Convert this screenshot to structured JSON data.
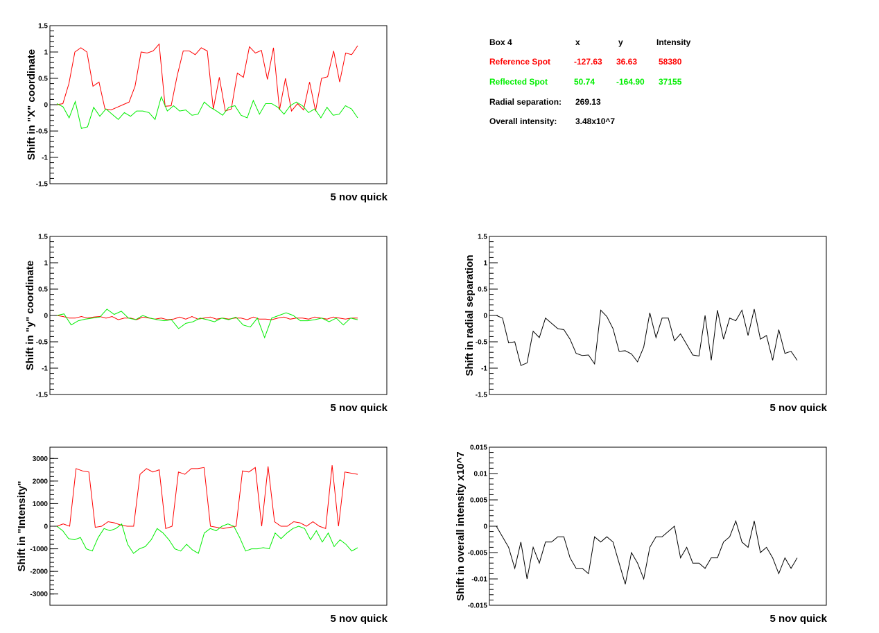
{
  "footer_label": "5 nov quick",
  "colors": {
    "reference": "#ff0000",
    "reflected": "#00ee00",
    "single": "#000000"
  },
  "info_panel": {
    "header": {
      "label": "Box 4",
      "x": "x",
      "y": "y",
      "intensity": "Intensity"
    },
    "reference": {
      "label": "Reference Spot",
      "x": "-127.63",
      "y": "36.63",
      "intensity": "58380"
    },
    "reflected": {
      "label": "Reflected Spot",
      "x": "50.74",
      "y": "-164.90",
      "intensity": "37155"
    },
    "radial": {
      "label": "Radial separation:",
      "value": "269.13"
    },
    "overall": {
      "label": "Overall intensity:",
      "value": "3.48x10^7"
    }
  },
  "chart_data": [
    {
      "id": "x_shift",
      "type": "line",
      "ylabel": "Shift in \"X\" coordinate",
      "ylim": [
        -1.5,
        1.5
      ],
      "yticks": [
        1.5,
        1,
        0.5,
        0,
        -0.5,
        -1,
        -1.5
      ],
      "ytick_labels": [
        "1.5",
        "1",
        "0.5",
        "0",
        "-0.5",
        "-1",
        "-1.5"
      ],
      "series": [
        {
          "role": "reference",
          "values": [
            0,
            0.02,
            0.4,
            1.0,
            1.08,
            1.0,
            0.35,
            0.43,
            -0.08,
            -0.1,
            -0.05,
            0.0,
            0.05,
            0.35,
            1.0,
            0.98,
            1.02,
            1.15,
            -0.03,
            -0.02,
            0.55,
            1.02,
            1.02,
            0.95,
            1.08,
            1.02,
            -0.08,
            0.52,
            -0.12,
            -0.08,
            0.6,
            0.52,
            1.1,
            0.98,
            1.03,
            0.48,
            1.08,
            -0.1,
            0.5,
            -0.12,
            0.02,
            -0.1,
            0.43,
            -0.12,
            0.5,
            0.53,
            1.02,
            0.43,
            0.98,
            0.95,
            1.12
          ]
        },
        {
          "role": "reflected",
          "values": [
            0.02,
            -0.04,
            -0.25,
            0.06,
            -0.45,
            -0.42,
            -0.05,
            -0.22,
            -0.08,
            -0.18,
            -0.28,
            -0.15,
            -0.22,
            -0.12,
            -0.12,
            -0.15,
            -0.28,
            0.15,
            -0.12,
            -0.02,
            -0.12,
            -0.1,
            -0.2,
            -0.18,
            0.05,
            -0.05,
            -0.12,
            -0.2,
            -0.05,
            -0.02,
            -0.2,
            -0.25,
            0.08,
            -0.18,
            0.02,
            0.02,
            -0.05,
            -0.18,
            -0.02,
            0.05,
            -0.02,
            -0.15,
            -0.08,
            -0.25,
            -0.05,
            -0.2,
            -0.18,
            -0.02,
            -0.08,
            -0.25
          ]
        }
      ]
    },
    {
      "id": "y_shift",
      "type": "line",
      "ylabel": "Shift in \"y\" coordinate",
      "ylim": [
        -1.5,
        1.5
      ],
      "yticks": [
        1.5,
        1,
        0.5,
        0,
        -0.5,
        -1,
        -1.5
      ],
      "ytick_labels": [
        "1.5",
        "1",
        "0.5",
        "0",
        "-0.5",
        "-1",
        "-1.5"
      ],
      "series": [
        {
          "role": "reference",
          "values": [
            0,
            -0.02,
            -0.05,
            -0.05,
            -0.02,
            -0.05,
            -0.03,
            -0.02,
            -0.05,
            -0.02,
            -0.08,
            -0.05,
            -0.05,
            -0.08,
            -0.03,
            -0.05,
            -0.07,
            -0.05,
            -0.08,
            -0.07,
            -0.03,
            -0.07,
            -0.02,
            -0.07,
            -0.05,
            -0.03,
            -0.07,
            -0.05,
            -0.07,
            -0.05,
            -0.05,
            -0.08,
            -0.03,
            -0.07,
            -0.07,
            -0.08,
            -0.05,
            -0.03,
            -0.07,
            -0.05,
            -0.05,
            -0.07,
            -0.03,
            -0.05,
            -0.07,
            -0.03,
            -0.05,
            -0.07,
            -0.05,
            -0.05
          ]
        },
        {
          "role": "reflected",
          "values": [
            0,
            0.03,
            -0.18,
            -0.1,
            -0.07,
            -0.05,
            -0.03,
            0.12,
            0.02,
            0.08,
            -0.05,
            -0.08,
            0.0,
            -0.05,
            -0.08,
            -0.1,
            -0.08,
            -0.25,
            -0.15,
            -0.12,
            -0.05,
            -0.08,
            -0.12,
            -0.05,
            -0.08,
            -0.03,
            -0.18,
            -0.22,
            -0.05,
            -0.42,
            -0.05,
            0.0,
            0.05,
            0.0,
            -0.1,
            -0.1,
            -0.08,
            -0.05,
            -0.12,
            -0.05,
            -0.18,
            -0.05,
            -0.08
          ]
        }
      ]
    },
    {
      "id": "radial_shift",
      "type": "line",
      "ylabel": "Shift in radial separation",
      "ylim": [
        -1.5,
        1.5
      ],
      "yticks": [
        1.5,
        1,
        0.5,
        0,
        -0.5,
        -1,
        -1.5
      ],
      "ytick_labels": [
        "1.5",
        "1",
        "0.5",
        "0",
        "-0.5",
        "-1",
        "-1.5"
      ],
      "series": [
        {
          "role": "single",
          "values": [
            0,
            -0.05,
            -0.52,
            -0.5,
            -0.95,
            -0.9,
            -0.3,
            -0.42,
            -0.05,
            -0.15,
            -0.25,
            -0.27,
            -0.45,
            -0.72,
            -0.76,
            -0.75,
            -0.92,
            0.1,
            -0.02,
            -0.25,
            -0.68,
            -0.67,
            -0.73,
            -0.88,
            -0.6,
            0.05,
            -0.42,
            -0.05,
            -0.05,
            -0.48,
            -0.35,
            -0.55,
            -0.75,
            -0.77,
            0.0,
            -0.85,
            0.1,
            -0.45,
            -0.05,
            -0.1,
            0.1,
            -0.38,
            0.12,
            -0.45,
            -0.38,
            -0.85,
            -0.27,
            -0.72,
            -0.68,
            -0.85
          ]
        }
      ]
    },
    {
      "id": "intensity_shift",
      "type": "line",
      "ylabel": "Shift in \"Intensity\"",
      "ylim": [
        -3500,
        3500
      ],
      "yticks": [
        3000,
        2000,
        1000,
        0,
        -1000,
        -2000,
        -3000
      ],
      "ytick_labels": [
        "3000",
        "2000",
        "1000",
        "0",
        "-1000",
        "-2000",
        "-3000"
      ],
      "series": [
        {
          "role": "reference",
          "values": [
            0,
            100,
            0,
            2550,
            2450,
            2400,
            -50,
            0,
            200,
            150,
            50,
            0,
            0,
            2300,
            2550,
            2400,
            2500,
            -100,
            0,
            2400,
            2300,
            2550,
            2550,
            2600,
            0,
            -50,
            -100,
            -50,
            0,
            2450,
            2400,
            2600,
            0,
            2650,
            200,
            0,
            0,
            200,
            150,
            0,
            200,
            0,
            -100,
            2700,
            0,
            2400,
            2350,
            2300
          ]
        },
        {
          "role": "reflected",
          "values": [
            0,
            -200,
            -550,
            -600,
            -500,
            -1000,
            -1100,
            -500,
            -100,
            -200,
            -100,
            100,
            -800,
            -1200,
            -1000,
            -900,
            -600,
            -100,
            -300,
            -600,
            -1000,
            -1100,
            -800,
            -1050,
            -1200,
            -300,
            -100,
            -200,
            0,
            100,
            0,
            -500,
            -1100,
            -1000,
            -1000,
            -950,
            -1000,
            -300,
            -550,
            -300,
            -100,
            0,
            -100,
            -600,
            -200,
            -700,
            -300,
            -900,
            -600,
            -800,
            -1100,
            -950
          ]
        }
      ]
    },
    {
      "id": "overall_intensity_shift",
      "type": "line",
      "ylabel": "Shift in overall intensity x10^7",
      "ylim": [
        -0.015,
        0.015
      ],
      "yticks": [
        0.015,
        0.01,
        0.005,
        0,
        -0.005,
        -0.01,
        -0.015
      ],
      "ytick_labels": [
        "0.015",
        "0.01",
        "0.005",
        "0",
        "-0.005",
        "-0.01",
        "-0.015"
      ],
      "series": [
        {
          "role": "single",
          "values": [
            0,
            -0.002,
            -0.004,
            -0.008,
            -0.003,
            -0.01,
            -0.004,
            -0.007,
            -0.003,
            -0.003,
            -0.002,
            -0.002,
            -0.006,
            -0.008,
            -0.008,
            -0.009,
            -0.002,
            -0.003,
            -0.002,
            -0.003,
            -0.007,
            -0.011,
            -0.005,
            -0.007,
            -0.01,
            -0.004,
            -0.002,
            -0.002,
            -0.001,
            0.0,
            -0.006,
            -0.004,
            -0.007,
            -0.007,
            -0.008,
            -0.006,
            -0.006,
            -0.003,
            -0.002,
            0.001,
            -0.003,
            -0.004,
            0.001,
            -0.005,
            -0.004,
            -0.006,
            -0.009,
            -0.006,
            -0.008,
            -0.006
          ]
        }
      ]
    }
  ]
}
